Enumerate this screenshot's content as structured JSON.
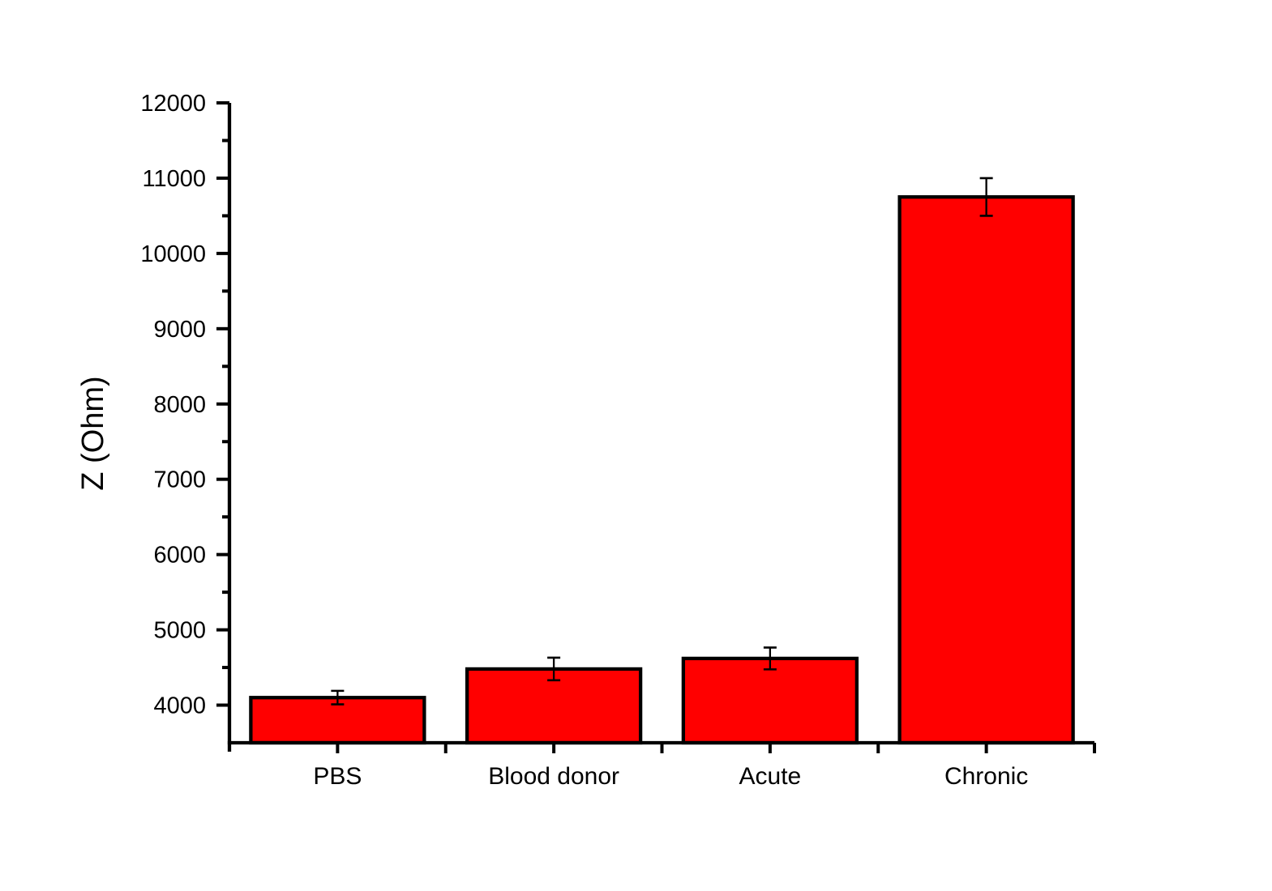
{
  "chart_data": {
    "type": "bar",
    "title": "",
    "categories": [
      "PBS",
      "Blood donor",
      "Acute",
      "Chronic"
    ],
    "values": [
      4100,
      4480,
      4620,
      10750
    ],
    "errors": [
      90,
      150,
      145,
      250
    ],
    "xlabel": "",
    "ylabel": "Z (Ohm)",
    "ylim": [
      3500,
      12000
    ],
    "ytick_major_step": 1000,
    "ytick_minor_step": 500,
    "ytick_labels": [
      "4000",
      "5000",
      "6000",
      "7000",
      "8000",
      "9000",
      "10000",
      "11000",
      "12000"
    ],
    "legend": null,
    "grid": false,
    "colors": {
      "bar_fill": "#FF0000",
      "bar_outline": "#000000",
      "axis": "#000000",
      "error_bar": "#000000",
      "text": "#000000",
      "background": "#FFFFFF"
    }
  }
}
